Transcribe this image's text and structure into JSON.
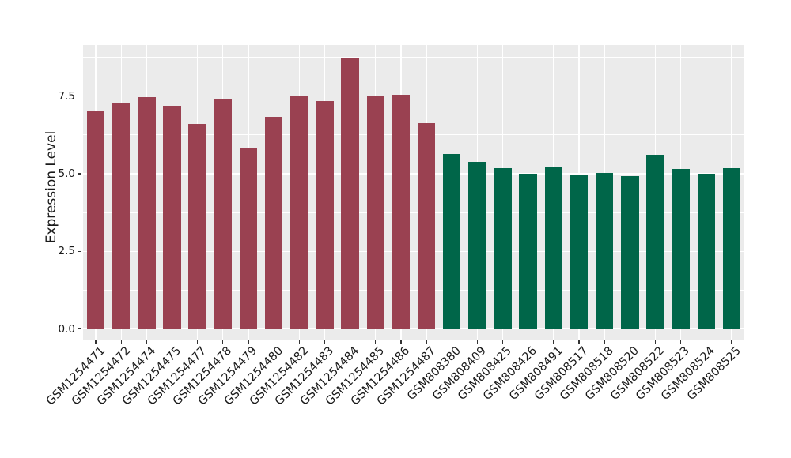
{
  "chart_data": {
    "type": "bar",
    "ylabel": "Expression Level",
    "categories": [
      "GSM1254471",
      "GSM1254472",
      "GSM1254474",
      "GSM1254475",
      "GSM1254477",
      "GSM1254478",
      "GSM1254479",
      "GSM1254480",
      "GSM1254482",
      "GSM1254483",
      "GSM1254484",
      "GSM1254485",
      "GSM1254486",
      "GSM1254487",
      "GSM808380",
      "GSM808409",
      "GSM808425",
      "GSM808426",
      "GSM808491",
      "GSM808517",
      "GSM808518",
      "GSM808520",
      "GSM808522",
      "GSM808523",
      "GSM808524",
      "GSM808525"
    ],
    "values": [
      7.03,
      7.27,
      7.46,
      7.18,
      6.61,
      7.38,
      5.85,
      6.82,
      7.52,
      7.35,
      8.71,
      7.49,
      7.54,
      6.62,
      5.64,
      5.37,
      5.18,
      5.0,
      5.23,
      4.94,
      5.03,
      4.92,
      5.62,
      5.15,
      5.0,
      5.17
    ],
    "bar_colors": [
      "#9A4151",
      "#9A4151",
      "#9A4151",
      "#9A4151",
      "#9A4151",
      "#9A4151",
      "#9A4151",
      "#9A4151",
      "#9A4151",
      "#9A4151",
      "#9A4151",
      "#9A4151",
      "#9A4151",
      "#9A4151",
      "#006649",
      "#006649",
      "#006649",
      "#006649",
      "#006649",
      "#006649",
      "#006649",
      "#006649",
      "#006649",
      "#006649",
      "#006649",
      "#006649"
    ],
    "group_colors": {
      "left_group": "#9A4151",
      "right_group": "#006649"
    },
    "yticks": {
      "values": [
        0.0,
        2.5,
        5.0,
        7.5
      ],
      "labels": [
        "0.0",
        "2.5",
        "5.0",
        "7.5"
      ]
    },
    "yminor_gridlines": [
      1.25,
      3.75,
      6.25,
      8.75
    ],
    "ylim": [
      0,
      9.15
    ],
    "grid": true,
    "legend": "none",
    "panel_background": "#EBEBEB",
    "gridline_color": "#FFFFFF",
    "tick_color": "#333333",
    "text_color": "#1A1A1A"
  }
}
